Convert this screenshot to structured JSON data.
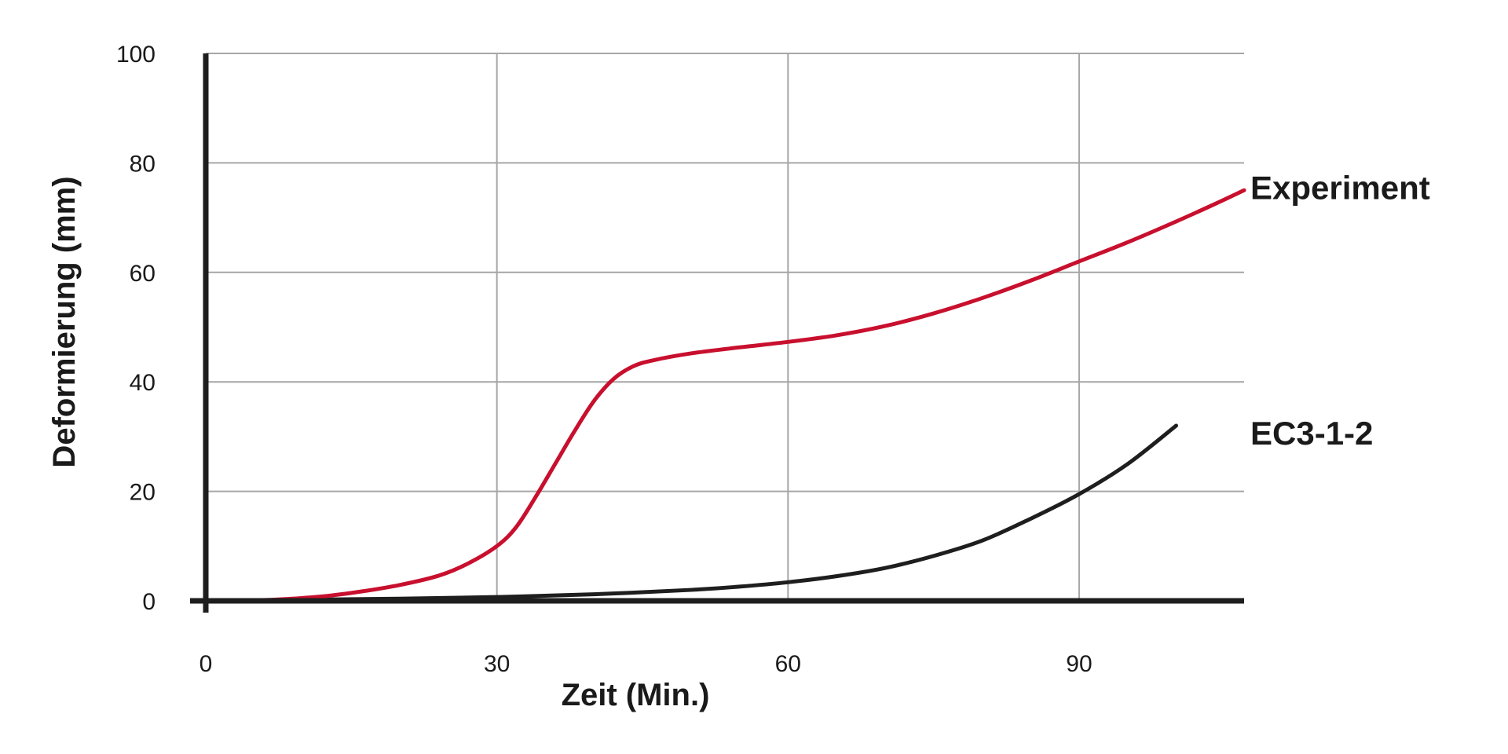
{
  "chart_data": {
    "type": "line",
    "xlabel": "Zeit (Min.)",
    "ylabel": "Deformierung (mm)",
    "xlim": [
      0,
      107
    ],
    "ylim": [
      0,
      100
    ],
    "x_ticks": [
      0,
      30,
      60,
      90
    ],
    "y_ticks": [
      0,
      20,
      40,
      60,
      80,
      100
    ],
    "x_tick_labels": [
      "0",
      "30",
      "60",
      "90"
    ],
    "y_tick_labels": [
      "0",
      "20",
      "40",
      "60",
      "80",
      "100"
    ],
    "grid": true,
    "legend": "inline labels at right end of each series",
    "series": [
      {
        "name": "Experiment",
        "color": "#c8102e",
        "points": [
          [
            0,
            0
          ],
          [
            5,
            0.1
          ],
          [
            8,
            0.3
          ],
          [
            12,
            0.8
          ],
          [
            16,
            1.7
          ],
          [
            20,
            2.9
          ],
          [
            24,
            4.6
          ],
          [
            27,
            6.8
          ],
          [
            30,
            10
          ],
          [
            32,
            13.5
          ],
          [
            34,
            19
          ],
          [
            36,
            25
          ],
          [
            38,
            31
          ],
          [
            40,
            36.5
          ],
          [
            42,
            40.5
          ],
          [
            44,
            42.8
          ],
          [
            46,
            43.9
          ],
          [
            50,
            45.2
          ],
          [
            55,
            46.3
          ],
          [
            60,
            47.3
          ],
          [
            65,
            48.5
          ],
          [
            70,
            50.2
          ],
          [
            75,
            52.5
          ],
          [
            80,
            55.3
          ],
          [
            85,
            58.5
          ],
          [
            90,
            62
          ],
          [
            95,
            65.5
          ],
          [
            100,
            69.3
          ],
          [
            104,
            72.5
          ],
          [
            107,
            75
          ]
        ]
      },
      {
        "name": "EC3-1-2",
        "color": "#1e1e1e",
        "points": [
          [
            0,
            0
          ],
          [
            10,
            0.2
          ],
          [
            20,
            0.4
          ],
          [
            30,
            0.7
          ],
          [
            40,
            1.2
          ],
          [
            50,
            2
          ],
          [
            55,
            2.6
          ],
          [
            60,
            3.4
          ],
          [
            65,
            4.5
          ],
          [
            70,
            6
          ],
          [
            75,
            8.2
          ],
          [
            80,
            11
          ],
          [
            85,
            15
          ],
          [
            90,
            19.5
          ],
          [
            95,
            25
          ],
          [
            100,
            32
          ]
        ]
      }
    ]
  }
}
